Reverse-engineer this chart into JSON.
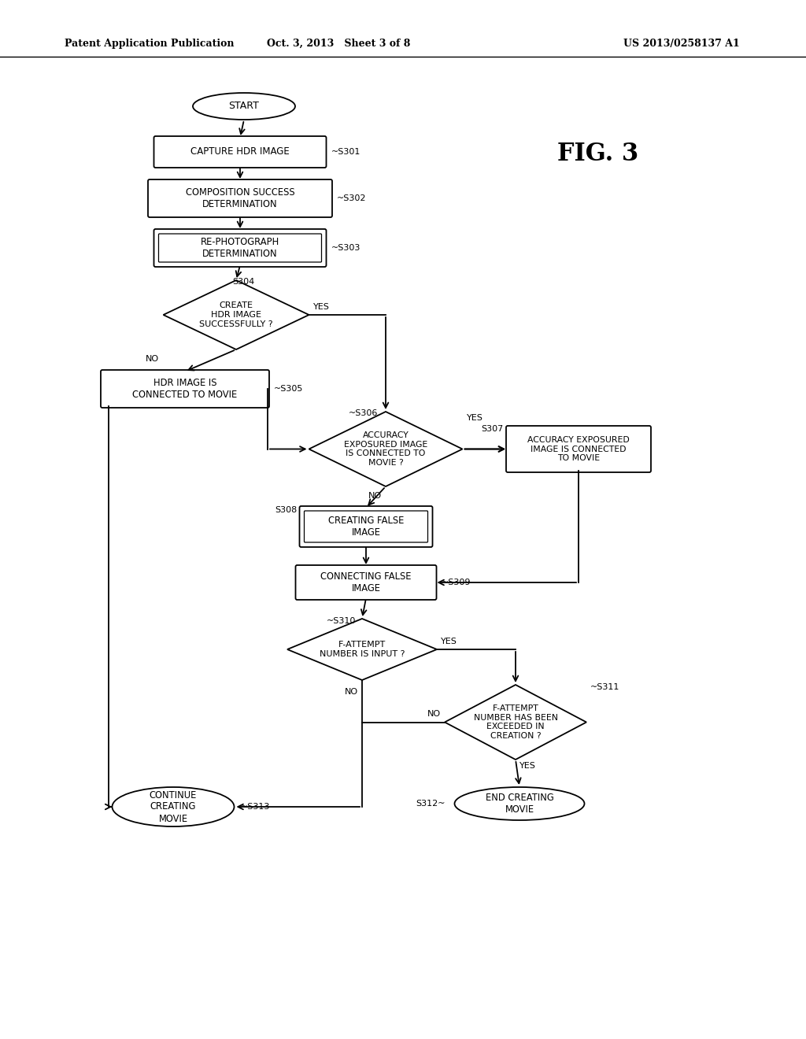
{
  "bg_color": "#ffffff",
  "header_left": "Patent Application Publication",
  "header_mid": "Oct. 3, 2013   Sheet 3 of 8",
  "header_right": "US 2013/0258137 A1",
  "fig_label": "FIG. 3"
}
